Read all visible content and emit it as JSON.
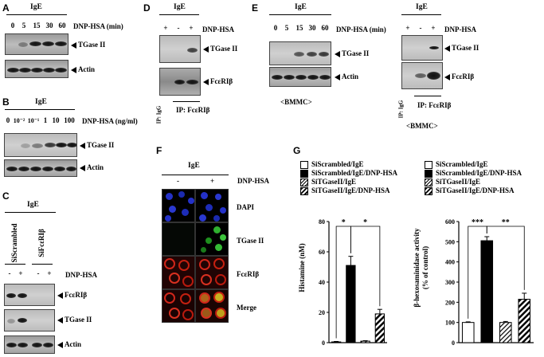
{
  "A": {
    "panel": "A",
    "treatment": "IgE",
    "stim": "DNP-HSA (min)",
    "times": [
      "0",
      "5",
      "15",
      "30",
      "60"
    ],
    "bands": [
      "TGase II",
      "Actin"
    ]
  },
  "B": {
    "panel": "B",
    "treatment": "IgE",
    "stim": "DNP-HSA (ng/ml)",
    "doses": [
      "0",
      "10⁻²",
      "10⁻¹",
      "1",
      "10",
      "100"
    ],
    "bands": [
      "TGase II",
      "Actin"
    ]
  },
  "C": {
    "panel": "C",
    "treatment": "IgE",
    "cols": [
      "SiScrambled",
      "SiFcεRIβ"
    ],
    "stim": "DNP-HSA",
    "signs": [
      "-",
      "+",
      "-",
      "+"
    ],
    "bands": [
      "FcεRIβ",
      "TGase II",
      "Actin"
    ]
  },
  "D": {
    "panel": "D",
    "treatment": "IgE",
    "stim": "DNP-HSA",
    "signs": [
      "+",
      "-",
      "+"
    ],
    "bands": [
      "TGase II",
      "FcεRIβ"
    ],
    "ip_igg": "IP: IgG",
    "ip": "IP: FcεRIβ"
  },
  "E": {
    "panel": "E",
    "treatment": "IgE",
    "stim": "DNP-HSA (min)",
    "times": [
      "0",
      "5",
      "15",
      "30",
      "60"
    ],
    "bands": [
      "TGase II",
      "Actin"
    ],
    "cell": "<BMMC>",
    "right": {
      "treatment": "IgE",
      "stim": "DNP-HSA",
      "signs": [
        "+",
        "-",
        "+"
      ],
      "bands": [
        "TGase II",
        "FcεRIβ"
      ],
      "ip_igg": "IP: IgG",
      "ip": "IP: FcεRIβ",
      "cell": "<BMMC>"
    }
  },
  "F": {
    "panel": "F",
    "treatment": "IgE",
    "stim": "DNP-HSA",
    "signs": [
      "-",
      "+"
    ],
    "rows": [
      "DAPI",
      "TGase II",
      "FcεRIβ",
      "Merge"
    ]
  },
  "G": {
    "panel": "G",
    "legend": [
      "SiScrambled/IgE",
      "SiScrambled/IgE/DNP-HSA",
      "SiTGaseII/IgE",
      "SiTGaseII/IgE/DNP-HSA"
    ],
    "sig_left": [
      "*",
      "*"
    ],
    "sig_right": [
      "***",
      "**"
    ]
  },
  "chart_data": [
    {
      "type": "bar",
      "ylabel": "Histamine (nM)",
      "ylim": [
        0,
        80
      ],
      "yticks": [
        "0",
        "20",
        "40",
        "60",
        "80"
      ],
      "categories": [
        "SiScrambled/IgE",
        "SiScrambled/IgE/DNP-HSA",
        "SiTGaseII/IgE",
        "SiTGaseII/IgE/DNP-HSA"
      ],
      "values": [
        0.5,
        51,
        1,
        19
      ],
      "errors": [
        0.3,
        6,
        0.3,
        3
      ]
    },
    {
      "type": "bar",
      "ylabel": "β-hexosaminidase activity (% of control)",
      "ylim": [
        0,
        600
      ],
      "yticks": [
        "0",
        "100",
        "200",
        "300",
        "400",
        "500",
        "600"
      ],
      "categories": [
        "SiScrambled/IgE",
        "SiScrambled/IgE/DNP-HSA",
        "SiTGaseII/IgE",
        "SiTGaseII/IgE/DNP-HSA"
      ],
      "values": [
        100,
        505,
        100,
        215
      ],
      "errors": [
        3,
        20,
        5,
        30
      ]
    }
  ]
}
